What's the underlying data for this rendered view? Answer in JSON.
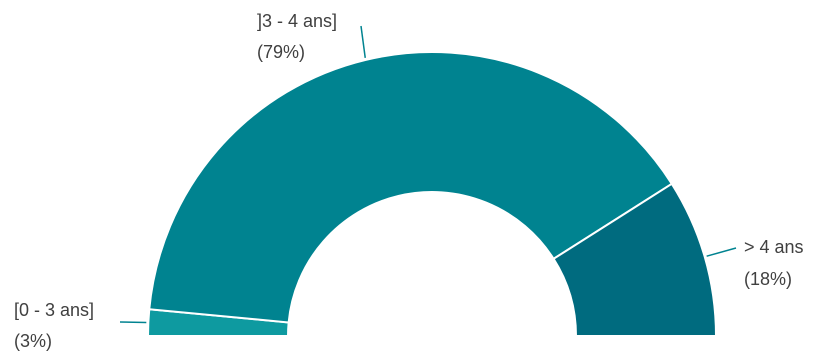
{
  "chart_data": {
    "type": "pie",
    "style": "half-donut",
    "title": "",
    "categories": [
      "[0 - 3 ans]",
      "]3 - 4 ans]",
      "> 4 ans"
    ],
    "values": [
      3,
      79,
      18
    ],
    "value_labels": [
      "(3%)",
      "(79%)",
      "(18%)"
    ],
    "colors": [
      "#0e9aa0",
      "#008390",
      "#006b7f"
    ],
    "legend": "none",
    "label_line_color": "#008390"
  }
}
